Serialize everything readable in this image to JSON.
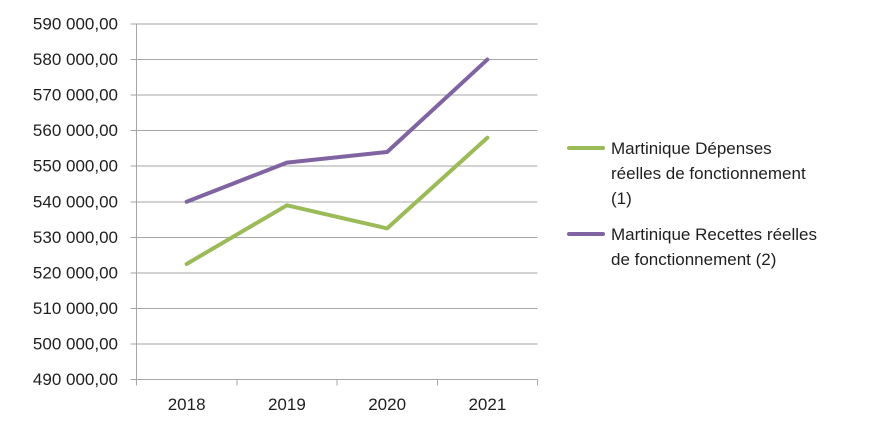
{
  "chart_data": {
    "type": "line",
    "title": "",
    "xlabel": "",
    "ylabel": "",
    "x": [
      "2018",
      "2019",
      "2020",
      "2021"
    ],
    "series": [
      {
        "name": "Martinique Dépenses réelles de fonctionnement (1)",
        "legend_lines": [
          "Martinique Dépenses",
          "réelles de fonctionnement",
          "(1)"
        ],
        "color": "#9BBB59",
        "values": [
          522500,
          539000,
          532500,
          558000
        ]
      },
      {
        "name": "Martinique Recettes réelles de fonctionnement (2)",
        "legend_lines": [
          "Martinique Recettes réelles",
          "de fonctionnement (2)"
        ],
        "color": "#8064A2",
        "values": [
          540000,
          551000,
          554000,
          580000
        ]
      }
    ],
    "ylim": [
      490000,
      590000
    ],
    "ytick_step": 10000,
    "ytick_labels": [
      "590 000,00",
      "580 000,00",
      "570 000,00",
      "560 000,00",
      "550 000,00",
      "540 000,00",
      "530 000,00",
      "520 000,00",
      "510 000,00",
      "500 000,00",
      "490 000,00"
    ],
    "number_format": "fr-FR, 2 decimals",
    "grid": "horizontal",
    "legend_position": "right",
    "colors": {
      "gridline": "#A6A6A6",
      "axis": "#A6A6A6",
      "tick_text": "#1f1f1f",
      "background": "#ffffff"
    }
  }
}
